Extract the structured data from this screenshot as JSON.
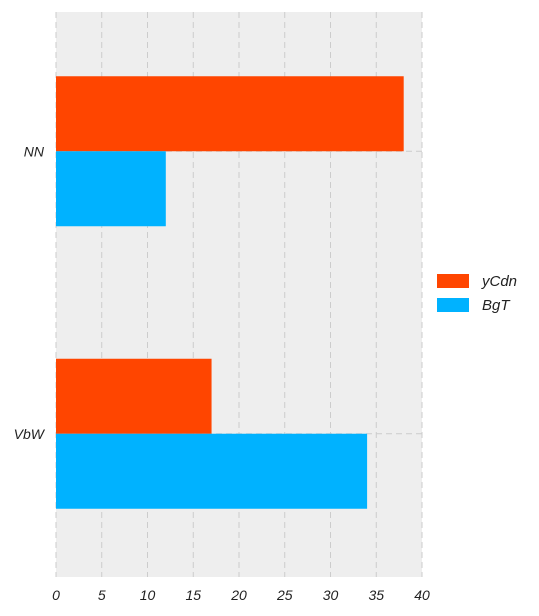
{
  "chart_data": {
    "type": "bar",
    "orientation": "horizontal",
    "categories": [
      "NN",
      "VbW"
    ],
    "series": [
      {
        "name": "yCdn",
        "color": "#ff4500",
        "values": [
          38,
          17
        ]
      },
      {
        "name": "BgT",
        "color": "#00b2ff",
        "values": [
          12,
          34
        ]
      }
    ],
    "xlim": [
      0,
      40
    ],
    "xticks": [
      0,
      5,
      10,
      15,
      20,
      25,
      30,
      35,
      40
    ],
    "grid": true,
    "legend_position": "right"
  },
  "colors": {
    "plot_background": "#eeeeee",
    "grid": "#cccccc"
  }
}
